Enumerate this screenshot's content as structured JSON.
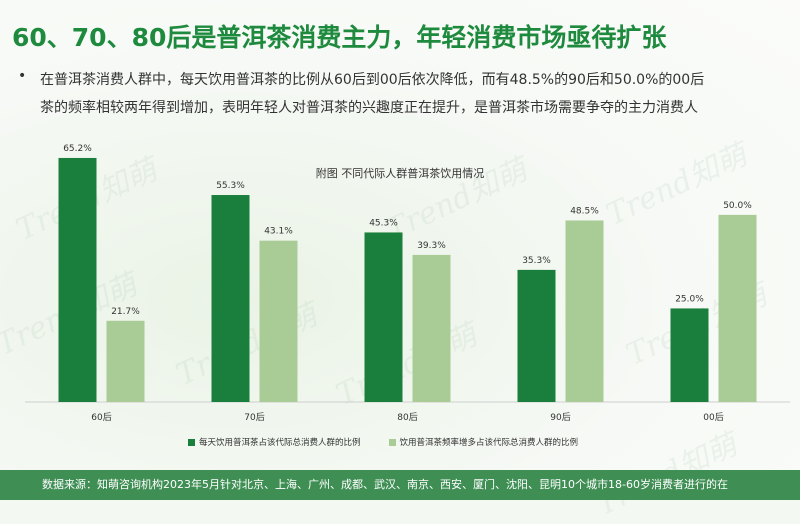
{
  "page": {
    "title": "60、70、80后是普洱茶消费主力，年轻消费市场亟待扩张",
    "bullet": "•",
    "paragraph_line1": "在普洱茶消费人群中，每天饮用普洱茶的比例从60后到00后依次降低，而有48.5%的90后和50.0%的00后",
    "paragraph_line2": "茶的频率相较两年得到增加，表明年轻人对普洱茶的兴趣度正在提升，是普洱茶市场需要争夺的主力消费人",
    "watermark": "Trend知萌",
    "footer": "数据来源：知萌咨询机构2023年5月针对北京、上海、广州、成都、武汉、南京、西安、厦门、沈阳、昆明10个城市18-60岁消费者进行的在"
  },
  "colors": {
    "title_green": "#1e8a3e",
    "series1": "#1a7f3c",
    "series2": "#a9cc96",
    "footer_bg": "#3f8f55"
  },
  "chart_data": {
    "type": "bar",
    "title": "附图 不同代际人群普洱茶饮用情况",
    "categories": [
      "60后",
      "70后",
      "80后",
      "90后",
      "00后"
    ],
    "series": [
      {
        "name": "每天饮用普洱茶占该代际总消费人群的比例",
        "values": [
          65.2,
          55.3,
          45.3,
          35.3,
          25.0
        ],
        "labels": [
          "65.2%",
          "55.3%",
          "45.3%",
          "35.3%",
          "25.0%"
        ],
        "color": "#1a7f3c"
      },
      {
        "name": "饮用普洱茶频率增多占该代际总消费人群的比例",
        "values": [
          21.7,
          43.1,
          39.3,
          48.5,
          50.0
        ],
        "labels": [
          "21.7%",
          "43.1%",
          "39.3%",
          "48.5%",
          "50.0%"
        ],
        "color": "#a9cc96"
      }
    ],
    "ylim": [
      0,
      70
    ],
    "grid": false,
    "legend_position": "bottom"
  }
}
